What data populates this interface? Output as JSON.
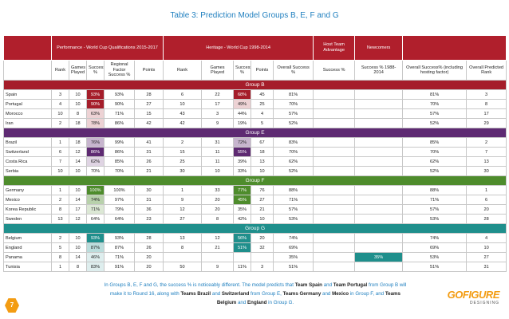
{
  "title": "Table 3: Prediction Model Groups B, E, F and G",
  "table": {
    "top_headers": [
      null,
      "Performance - World Cup Qualifications 2015-2017",
      "Heritage - World Cup 1998-2014",
      "Host Team Advantage",
      "Newcomers",
      null
    ],
    "header_color": "#b01f2c",
    "columns": [
      null,
      "Rank",
      "Games Played",
      "Success %",
      "Regional Factor Success %",
      "Points",
      "Rank",
      "Games Played",
      "Success %",
      "Points",
      "Overall Success %",
      "Success %",
      "Success % 1988-2014",
      "Overall Success% (including hosting factor)",
      "Overall Predicted Rank"
    ],
    "groups": [
      {
        "name": "Group B",
        "color": "#a51d2a",
        "rows": [
          [
            "Spain",
            3,
            10,
            "93%",
            "93%",
            28,
            6,
            22,
            "68%",
            45,
            "81%",
            null,
            null,
            "81%",
            3
          ],
          [
            "Portugal",
            4,
            10,
            "90%",
            "90%",
            27,
            10,
            17,
            "49%",
            25,
            "70%",
            null,
            null,
            "70%",
            8
          ],
          [
            "Morocco",
            10,
            8,
            "63%",
            "71%",
            15,
            43,
            3,
            "44%",
            4,
            "57%",
            null,
            null,
            "57%",
            17
          ],
          [
            "Iran",
            2,
            18,
            "78%",
            "86%",
            42,
            42,
            9,
            "19%",
            5,
            "52%",
            null,
            null,
            "52%",
            29
          ]
        ]
      },
      {
        "name": "Group E",
        "color": "#5e2a72",
        "rows": [
          [
            "Brazil",
            1,
            18,
            "76%",
            "99%",
            41,
            2,
            31,
            "72%",
            67,
            "83%",
            null,
            null,
            "85%",
            2
          ],
          [
            "Switzerland",
            6,
            12,
            "86%",
            "86%",
            31,
            15,
            11,
            "55%",
            18,
            "70%",
            null,
            null,
            "70%",
            7
          ],
          [
            "Costa Rica",
            7,
            14,
            "62%",
            "85%",
            26,
            25,
            11,
            "39%",
            13,
            "62%",
            null,
            null,
            "62%",
            13
          ],
          [
            "Serbia",
            10,
            10,
            "70%",
            "70%",
            21,
            30,
            10,
            "33%",
            10,
            "52%",
            null,
            null,
            "52%",
            30
          ]
        ]
      },
      {
        "name": "Group F",
        "color": "#4e8c2c",
        "rows": [
          [
            "Germany",
            1,
            10,
            "100%",
            "100%",
            30,
            1,
            33,
            "77%",
            76,
            "88%",
            null,
            null,
            "88%",
            1
          ],
          [
            "Mexico",
            2,
            14,
            "74%",
            "97%",
            31,
            9,
            20,
            "45%",
            27,
            "71%",
            null,
            null,
            "71%",
            6
          ],
          [
            "Korea Republic",
            8,
            17,
            "71%",
            "79%",
            36,
            12,
            20,
            "35%",
            21,
            "57%",
            null,
            null,
            "57%",
            20
          ],
          [
            "Sweden",
            13,
            12,
            "64%",
            "64%",
            23,
            27,
            8,
            "42%",
            10,
            "53%",
            null,
            null,
            "53%",
            28
          ]
        ]
      },
      {
        "name": "Group G",
        "color": "#1f8f8c",
        "rows": [
          [
            "Belgium",
            2,
            10,
            "93%",
            "93%",
            28,
            13,
            12,
            "56%",
            20,
            "74%",
            null,
            null,
            "74%",
            4
          ],
          [
            "England",
            5,
            10,
            "87%",
            "87%",
            26,
            8,
            21,
            "51%",
            32,
            "69%",
            null,
            null,
            "69%",
            10
          ],
          [
            "Panama",
            8,
            14,
            "46%",
            "71%",
            20,
            null,
            null,
            null,
            null,
            "35%",
            null,
            "35%",
            "53%",
            27
          ],
          [
            "Tunisia",
            1,
            8,
            "83%",
            "91%",
            20,
            50,
            9,
            "11%",
            3,
            "51%",
            null,
            null,
            "51%",
            31
          ]
        ]
      }
    ]
  },
  "footer": [
    {
      "text": "In Groups B, E, F and G, the success % is noticeably different. The model predicts that ",
      "bold": false
    },
    {
      "text": "Team Spain",
      "bold": true
    },
    {
      "text": " and ",
      "bold": false
    },
    {
      "text": "Team Portugal",
      "bold": true
    },
    {
      "text": " from Group B will make it to Round 16, along with ",
      "bold": false
    },
    {
      "text": "Teams Brazil",
      "bold": true
    },
    {
      "text": " and ",
      "bold": false
    },
    {
      "text": "Switzerland",
      "bold": true
    },
    {
      "text": " from Group E, ",
      "bold": false
    },
    {
      "text": "Teams Germany",
      "bold": true
    },
    {
      "text": " and ",
      "bold": false
    },
    {
      "text": "Mexico",
      "bold": true
    },
    {
      "text": " in Group F, and ",
      "bold": false
    },
    {
      "text": "Teams Belgium",
      "bold": true
    },
    {
      "text": " and ",
      "bold": false
    },
    {
      "text": "England",
      "bold": true
    },
    {
      "text": " in Group G.",
      "bold": false
    }
  ],
  "page_number": "7",
  "logo": {
    "name": "GOFIGURE",
    "tagline": "DESIGNING"
  }
}
